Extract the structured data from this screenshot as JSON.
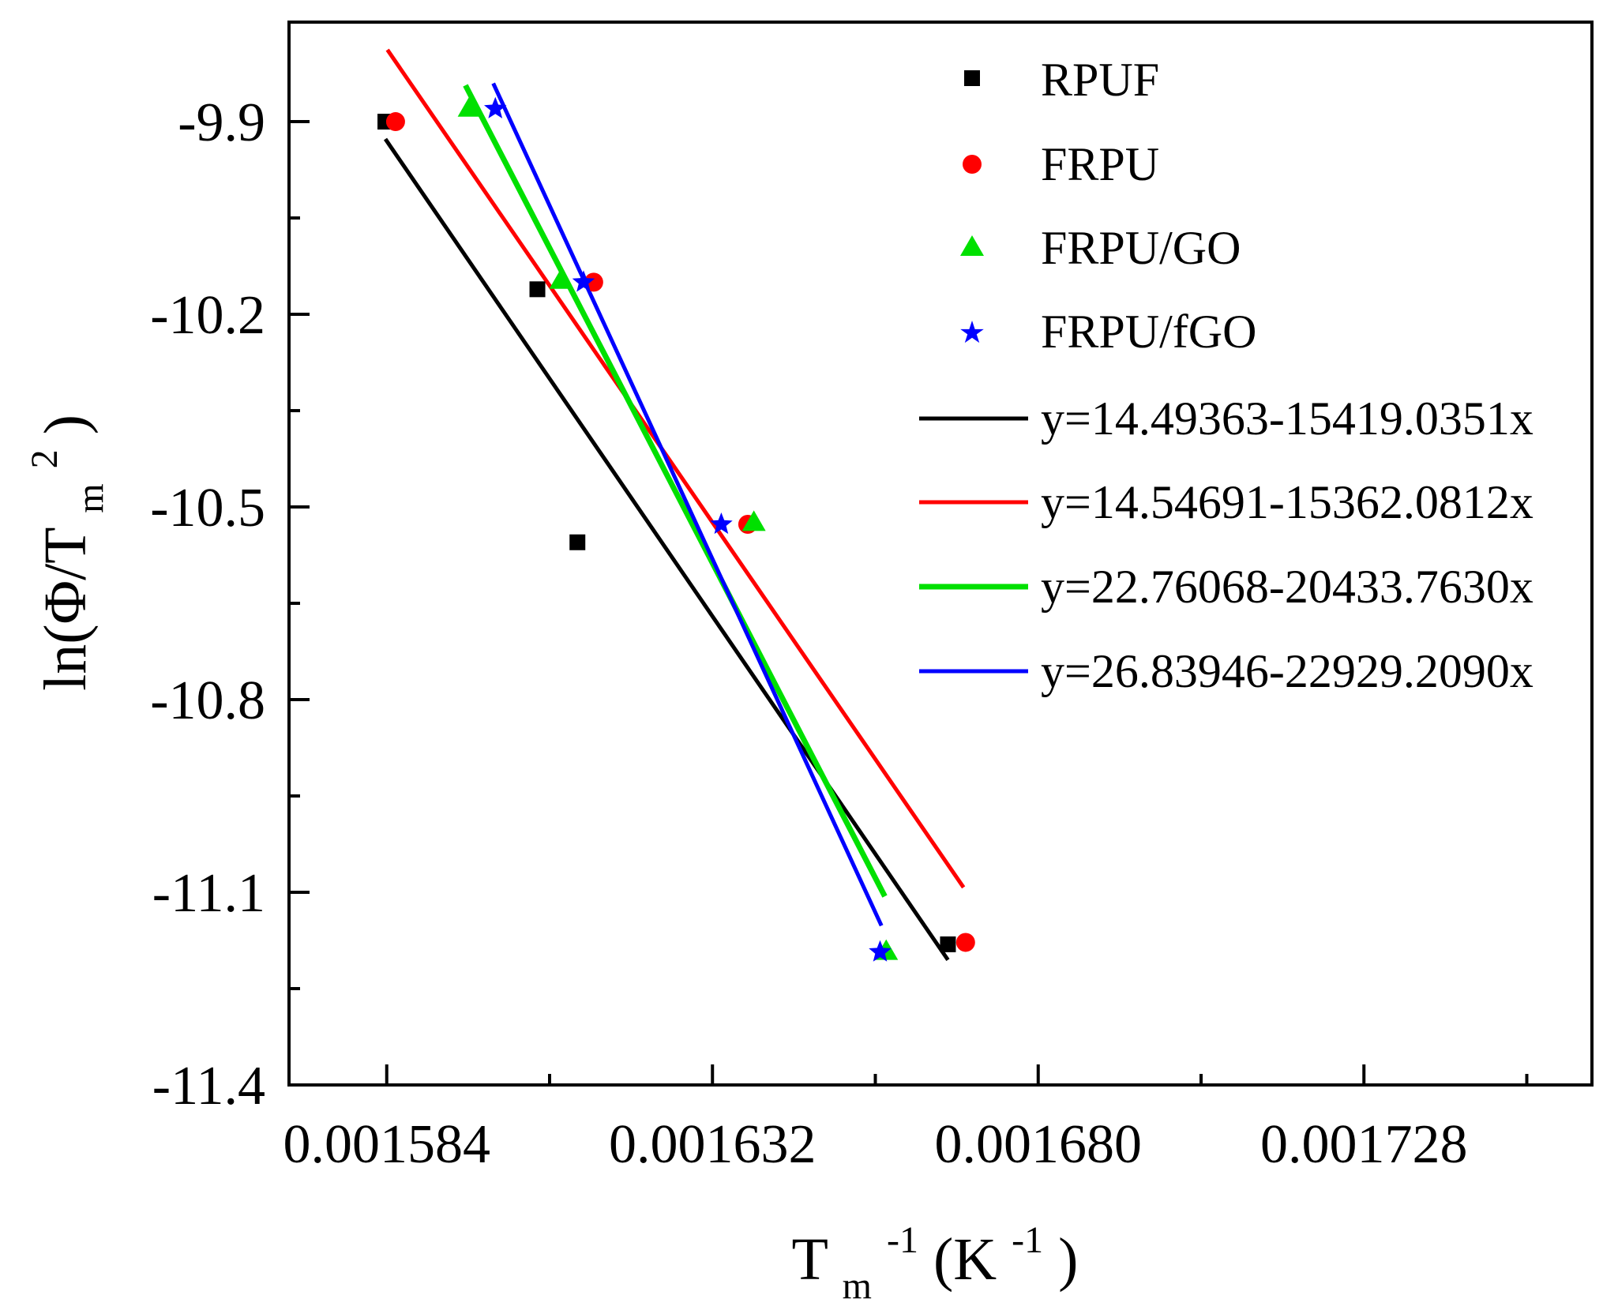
{
  "chart_data": {
    "type": "scatter",
    "xlabel": {
      "main": "T",
      "sub": "m",
      "sup": "-1",
      "unit_open": " (K",
      "unit_sup": "-1",
      "unit_close": ")"
    },
    "ylabel": {
      "prefix": "ln(Φ/T",
      "sub": "m",
      "sup": "2",
      "suffix": ")"
    },
    "xlim": [
      0.0015696,
      0.0017616
    ],
    "ylim": [
      -11.4,
      -9.745
    ],
    "xticks": [
      {
        "value": 0.001584,
        "label": "0.001584"
      },
      {
        "value": 0.001632,
        "label": "0.001632"
      },
      {
        "value": 0.00168,
        "label": "0.001680"
      },
      {
        "value": 0.001728,
        "label": "0.001728"
      }
    ],
    "x_minor_ticks": [
      0.001608,
      0.001656,
      0.001704,
      0.001752
    ],
    "yticks": [
      {
        "value": -9.9,
        "label": "-9.9"
      },
      {
        "value": -10.2,
        "label": "-10.2"
      },
      {
        "value": -10.5,
        "label": "-10.5"
      },
      {
        "value": -10.8,
        "label": "-10.8"
      },
      {
        "value": -11.1,
        "label": "-11.1"
      },
      {
        "value": -11.4,
        "label": "-11.4"
      }
    ],
    "y_minor_ticks": [
      -10.05,
      -10.35,
      -10.65,
      -10.95,
      -11.25
    ],
    "grid": false,
    "legend_position": "top-right",
    "series": [
      {
        "name": "RPUF",
        "marker": "square",
        "color": "#000000",
        "points": [
          {
            "x": 0.0015838,
            "y": -9.9
          },
          {
            "x": 0.0016062,
            "y": -10.161
          },
          {
            "x": 0.0016121,
            "y": -10.555
          },
          {
            "x": 0.0016667,
            "y": -11.181
          }
        ]
      },
      {
        "name": "FRPU",
        "marker": "circle",
        "color": "#ff0000",
        "points": [
          {
            "x": 0.0015853,
            "y": -9.9
          },
          {
            "x": 0.0016145,
            "y": -10.15
          },
          {
            "x": 0.0016372,
            "y": -10.527
          },
          {
            "x": 0.0016693,
            "y": -11.178
          }
        ]
      },
      {
        "name": "FRPU/GO",
        "marker": "triangle",
        "color": "#00e000",
        "points": [
          {
            "x": 0.0015962,
            "y": -9.88
          },
          {
            "x": 0.0016097,
            "y": -10.148
          },
          {
            "x": 0.0016381,
            "y": -10.525
          },
          {
            "x": 0.0016576,
            "y": -11.193
          }
        ]
      },
      {
        "name": "FRPU/fGO",
        "marker": "star",
        "color": "#0000ff",
        "points": [
          {
            "x": 0.0016,
            "y": -9.88
          },
          {
            "x": 0.001613,
            "y": -10.15
          },
          {
            "x": 0.0016333,
            "y": -10.527
          },
          {
            "x": 0.0016567,
            "y": -11.193
          }
        ]
      }
    ],
    "fit_lines": [
      {
        "label": "y=14.49363-15419.0351x",
        "color": "#000000",
        "x_range": [
          0.0015838,
          0.0016667
        ],
        "intercept": 14.49363,
        "slope": -15419.0351
      },
      {
        "label": "y=14.54691-15362.0812x",
        "color": "#ff0000",
        "x_range": [
          0.0015841,
          0.001669
        ],
        "intercept": 14.54691,
        "slope": -15362.0812
      },
      {
        "label": "y=22.76068-20433.7630x",
        "color": "#00e000",
        "x_range": [
          0.0015956,
          0.0016574
        ],
        "intercept": 22.76068,
        "slope": -20433.763
      },
      {
        "label": "y=26.83946-22929.2090x",
        "color": "#0000ff",
        "x_range": [
          0.0015997,
          0.0016569
        ],
        "intercept": 26.83946,
        "slope": -22929.209
      }
    ]
  }
}
